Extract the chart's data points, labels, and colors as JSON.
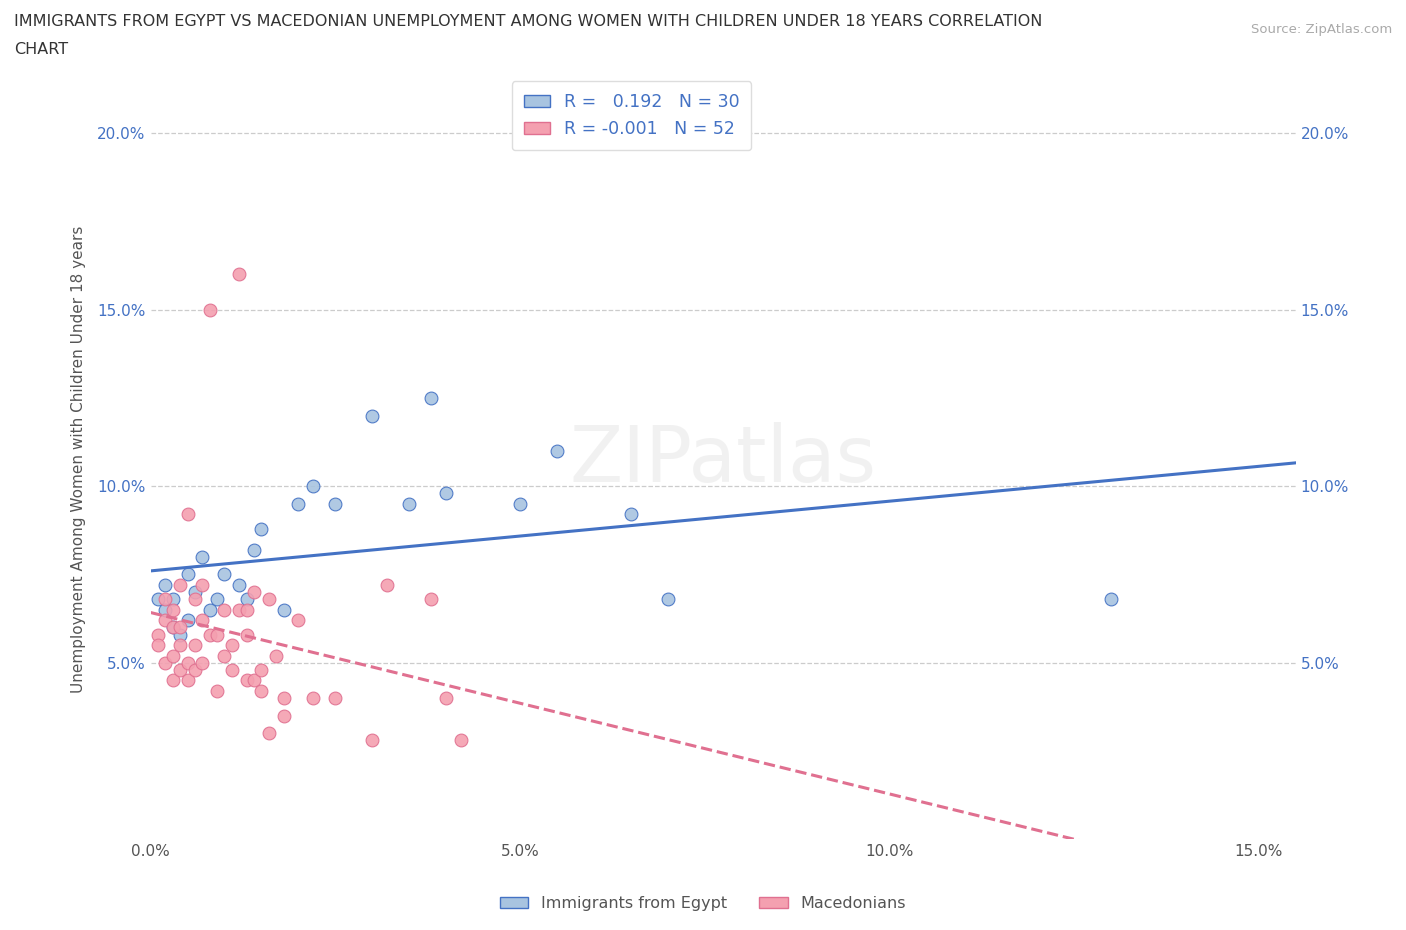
{
  "title_line1": "IMMIGRANTS FROM EGYPT VS MACEDONIAN UNEMPLOYMENT AMONG WOMEN WITH CHILDREN UNDER 18 YEARS CORRELATION",
  "title_line2": "CHART",
  "source": "Source: ZipAtlas.com",
  "ylabel": "Unemployment Among Women with Children Under 18 years",
  "xlim": [
    0.0,
    0.155
  ],
  "ylim": [
    0.0,
    0.215
  ],
  "xticks": [
    0.0,
    0.05,
    0.1,
    0.15
  ],
  "xtick_labels": [
    "0.0%",
    "5.0%",
    "10.0%",
    "15.0%"
  ],
  "yticks": [
    0.05,
    0.1,
    0.15,
    0.2
  ],
  "ytick_labels": [
    "5.0%",
    "10.0%",
    "15.0%",
    "20.0%"
  ],
  "blue_scatter": [
    [
      0.001,
      0.068
    ],
    [
      0.002,
      0.065
    ],
    [
      0.002,
      0.072
    ],
    [
      0.003,
      0.06
    ],
    [
      0.003,
      0.068
    ],
    [
      0.004,
      0.058
    ],
    [
      0.005,
      0.075
    ],
    [
      0.005,
      0.062
    ],
    [
      0.006,
      0.07
    ],
    [
      0.007,
      0.08
    ],
    [
      0.008,
      0.065
    ],
    [
      0.009,
      0.068
    ],
    [
      0.01,
      0.075
    ],
    [
      0.012,
      0.072
    ],
    [
      0.013,
      0.068
    ],
    [
      0.014,
      0.082
    ],
    [
      0.015,
      0.088
    ],
    [
      0.018,
      0.065
    ],
    [
      0.02,
      0.095
    ],
    [
      0.022,
      0.1
    ],
    [
      0.025,
      0.095
    ],
    [
      0.03,
      0.12
    ],
    [
      0.035,
      0.095
    ],
    [
      0.038,
      0.125
    ],
    [
      0.04,
      0.098
    ],
    [
      0.05,
      0.095
    ],
    [
      0.055,
      0.11
    ],
    [
      0.065,
      0.092
    ],
    [
      0.07,
      0.068
    ],
    [
      0.13,
      0.068
    ]
  ],
  "pink_scatter": [
    [
      0.001,
      0.058
    ],
    [
      0.001,
      0.055
    ],
    [
      0.002,
      0.068
    ],
    [
      0.002,
      0.062
    ],
    [
      0.002,
      0.05
    ],
    [
      0.003,
      0.045
    ],
    [
      0.003,
      0.052
    ],
    [
      0.003,
      0.06
    ],
    [
      0.003,
      0.065
    ],
    [
      0.004,
      0.048
    ],
    [
      0.004,
      0.055
    ],
    [
      0.004,
      0.072
    ],
    [
      0.004,
      0.06
    ],
    [
      0.005,
      0.092
    ],
    [
      0.005,
      0.05
    ],
    [
      0.005,
      0.045
    ],
    [
      0.006,
      0.068
    ],
    [
      0.006,
      0.055
    ],
    [
      0.006,
      0.048
    ],
    [
      0.007,
      0.072
    ],
    [
      0.007,
      0.05
    ],
    [
      0.007,
      0.062
    ],
    [
      0.008,
      0.15
    ],
    [
      0.008,
      0.058
    ],
    [
      0.009,
      0.058
    ],
    [
      0.009,
      0.042
    ],
    [
      0.01,
      0.065
    ],
    [
      0.01,
      0.052
    ],
    [
      0.011,
      0.055
    ],
    [
      0.011,
      0.048
    ],
    [
      0.012,
      0.16
    ],
    [
      0.012,
      0.065
    ],
    [
      0.013,
      0.065
    ],
    [
      0.013,
      0.058
    ],
    [
      0.013,
      0.045
    ],
    [
      0.014,
      0.07
    ],
    [
      0.014,
      0.045
    ],
    [
      0.015,
      0.048
    ],
    [
      0.015,
      0.042
    ],
    [
      0.016,
      0.03
    ],
    [
      0.016,
      0.068
    ],
    [
      0.017,
      0.052
    ],
    [
      0.018,
      0.04
    ],
    [
      0.018,
      0.035
    ],
    [
      0.02,
      0.062
    ],
    [
      0.022,
      0.04
    ],
    [
      0.025,
      0.04
    ],
    [
      0.03,
      0.028
    ],
    [
      0.032,
      0.072
    ],
    [
      0.038,
      0.068
    ],
    [
      0.04,
      0.04
    ],
    [
      0.042,
      0.028
    ]
  ],
  "blue_fill": "#a8c4e0",
  "blue_edge": "#4472c4",
  "pink_fill": "#f4a0b0",
  "pink_edge": "#e07090",
  "blue_line": "#4472c4",
  "pink_line": "#e07090",
  "blue_R": "0.192",
  "blue_N": "30",
  "pink_R": "-0.001",
  "pink_N": "52",
  "legend1": "Immigrants from Egypt",
  "legend2": "Macedonians",
  "watermark": "ZIPatlas",
  "bg": "#ffffff",
  "grid_color": "#cccccc",
  "title_color": "#333333",
  "tick_color": "#4472c4",
  "ylabel_color": "#555555"
}
